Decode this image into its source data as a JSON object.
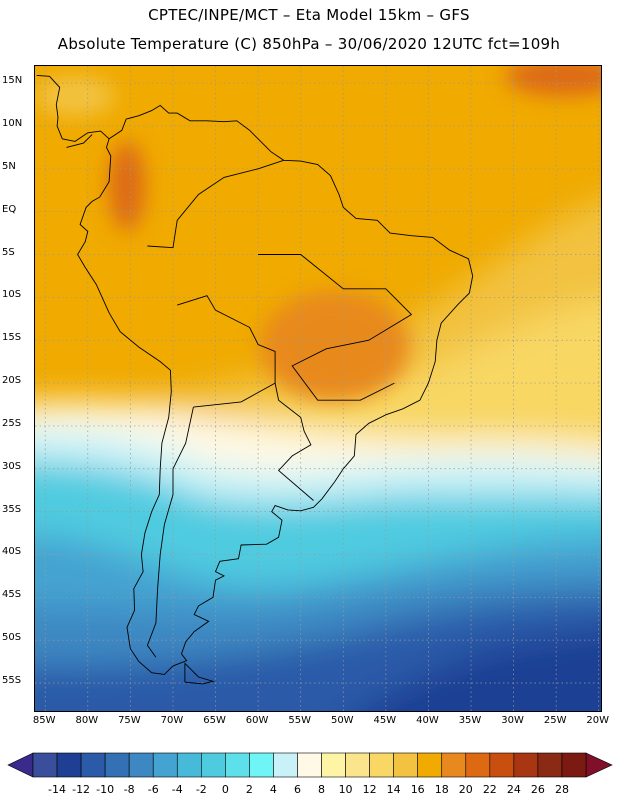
{
  "title": {
    "line1": "CPTEC/INPE/MCT –  Eta Model 15km – GFS",
    "line2": "Absolute Temperature (C) 850hPa – 30/06/2020 12UTC fct=109h"
  },
  "map": {
    "lat_labels": [
      "15N",
      "10N",
      "5N",
      "EQ",
      "5S",
      "10S",
      "15S",
      "20S",
      "25S",
      "30S",
      "35S",
      "40S",
      "45S",
      "50S",
      "55S"
    ],
    "lon_labels": [
      "85W",
      "80W",
      "75W",
      "70W",
      "65W",
      "60W",
      "55W",
      "50W",
      "45W",
      "40W",
      "35W",
      "30W",
      "25W",
      "20W"
    ],
    "lat_range": [
      17,
      -58.5
    ],
    "lon_range": [
      -86.2,
      -19.5
    ],
    "gridline_color": "#9a9a9a"
  },
  "colorbar": {
    "labels": [
      "-14",
      "-12",
      "-10",
      "-8",
      "-6",
      "-4",
      "-2",
      "0",
      "2",
      "4",
      "6",
      "8",
      "10",
      "12",
      "14",
      "16",
      "18",
      "20",
      "22",
      "24",
      "26",
      "28"
    ],
    "colors": [
      "#3a4f9c",
      "#1e3f94",
      "#2a5aa8",
      "#3470b4",
      "#3d88c2",
      "#45a3d1",
      "#47b9d9",
      "#4fcbe0",
      "#5ee0ea",
      "#6ff5f5",
      "#c9f2f8",
      "#fff9e6",
      "#fdf4a6",
      "#fbe58c",
      "#f8d764",
      "#f2c240",
      "#f0aa00",
      "#e8891f",
      "#dd6a12",
      "#c84f10",
      "#a83612",
      "#8a2a14",
      "#7a1a10"
    ],
    "under_color": "#3a2a8c",
    "over_color": "#80102a"
  }
}
